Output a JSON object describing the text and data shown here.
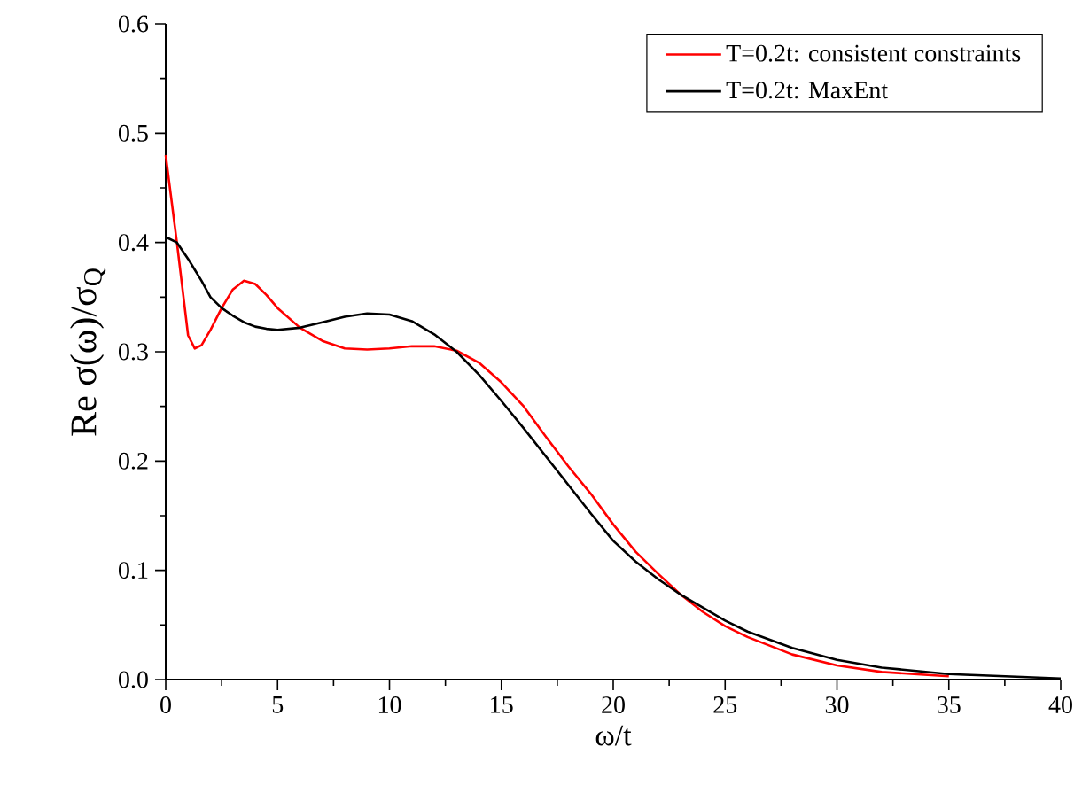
{
  "chart_data": {
    "type": "line",
    "xlabel": "ω/t",
    "ylabel": "Re σ(ω)/σ$_{Q}$",
    "xlim": [
      0,
      40
    ],
    "ylim": [
      0,
      0.6
    ],
    "xticks": [
      0,
      5,
      10,
      15,
      20,
      25,
      30,
      35,
      40
    ],
    "yticks": [
      {
        "value": 0,
        "label": "0.0"
      },
      {
        "value": 0.1,
        "label": "0.1"
      },
      {
        "value": 0.2,
        "label": "0.2"
      },
      {
        "value": 0.3,
        "label": "0.3"
      },
      {
        "value": 0.4,
        "label": "0.4"
      },
      {
        "value": 0.5,
        "label": "0.5"
      },
      {
        "value": 0.6,
        "label": "0.6"
      }
    ],
    "grid": false,
    "legend": "top right",
    "marker": "none",
    "line_style": "solid",
    "x": [
      0,
      0.5,
      1,
      1.3,
      1.6,
      2,
      2.5,
      3,
      3.5,
      4,
      4.5,
      5,
      6,
      7,
      8,
      9,
      10,
      11,
      12,
      13,
      14,
      15,
      16,
      17,
      18,
      19,
      20,
      21,
      22,
      23,
      24,
      25,
      26,
      28,
      30,
      32,
      35,
      40
    ],
    "series": [
      {
        "name": "T=0.2t: consistent constraints",
        "color": "#ff0000",
        "values": [
          0.48,
          0.4,
          0.315,
          0.303,
          0.306,
          0.32,
          0.34,
          0.357,
          0.365,
          0.362,
          0.352,
          0.34,
          0.322,
          0.31,
          0.303,
          0.302,
          0.303,
          0.305,
          0.305,
          0.301,
          0.29,
          0.272,
          0.25,
          0.222,
          0.195,
          0.17,
          0.142,
          0.117,
          0.097,
          0.078,
          0.062,
          0.049,
          0.039,
          0.023,
          0.013,
          0.007,
          0.003,
          null
        ]
      },
      {
        "name": "T=0.2t: MaxEnt",
        "color": "#000000",
        "values": [
          0.405,
          0.4,
          0.385,
          0.375,
          0.365,
          0.35,
          0.34,
          0.333,
          0.327,
          0.323,
          0.321,
          0.32,
          0.322,
          0.327,
          0.332,
          0.335,
          0.334,
          0.328,
          0.316,
          0.3,
          0.279,
          0.255,
          0.23,
          0.204,
          0.178,
          0.152,
          0.127,
          0.108,
          0.092,
          0.078,
          0.066,
          0.054,
          0.044,
          0.029,
          0.018,
          0.011,
          0.005,
          0.001
        ]
      }
    ]
  }
}
